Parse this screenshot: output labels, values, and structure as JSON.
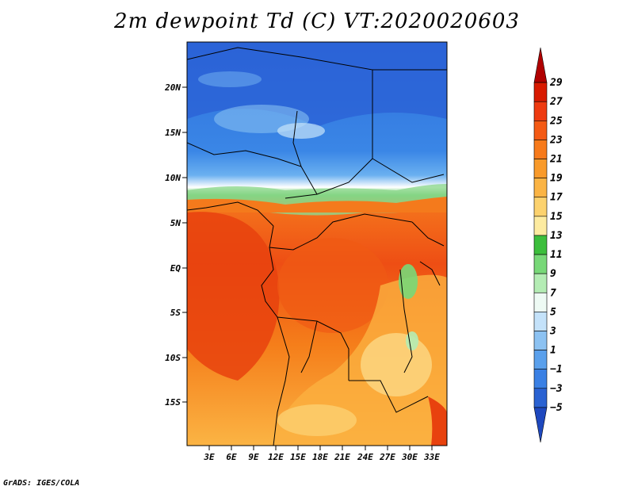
{
  "title": "2m dewpoint Td (C) VT:2020020603",
  "credit": "GrADS: IGES/COLA",
  "map": {
    "lat_labels": [
      "20N",
      "15N",
      "10N",
      "5N",
      "EQ",
      "5S",
      "10S",
      "15S"
    ],
    "lon_labels": [
      "3E",
      "6E",
      "9E",
      "12E",
      "15E",
      "18E",
      "21E",
      "24E",
      "27E",
      "30E",
      "33E"
    ],
    "lat_range": [
      -20,
      25
    ],
    "lon_range": [
      0,
      34
    ]
  },
  "colorbar": {
    "labels": [
      "29",
      "27",
      "25",
      "23",
      "21",
      "19",
      "17",
      "15",
      "13",
      "11",
      "9",
      "7",
      "5",
      "3",
      "1",
      "−1",
      "−3",
      "−5"
    ],
    "colors": [
      "#b00000",
      "#d81a00",
      "#ee3a10",
      "#f45a14",
      "#f77a1a",
      "#f99a2a",
      "#fbb444",
      "#fcd26e",
      "#fdeba0",
      "#3cbe3c",
      "#78d878",
      "#b4ecb4",
      "#eefaf4",
      "#c4e2fa",
      "#8cc2f2",
      "#5aa0ec",
      "#3a80e4",
      "#2a62d2",
      "#1e48be"
    ]
  }
}
